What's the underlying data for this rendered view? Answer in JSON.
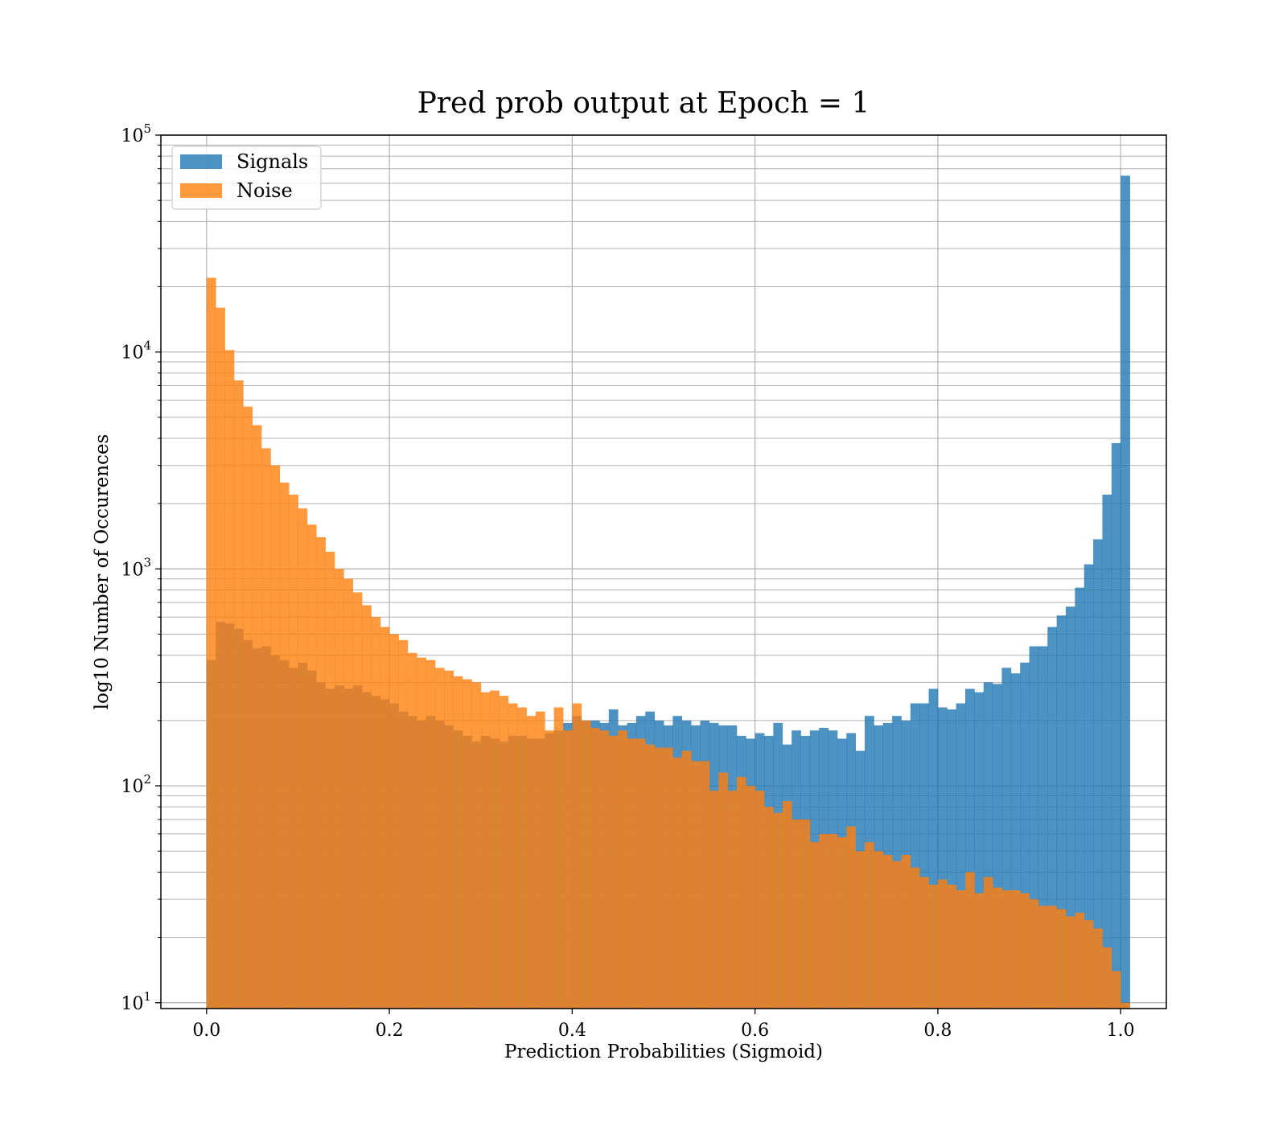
{
  "chart_data": {
    "type": "bar",
    "title": "Pred prob output at Epoch = 1",
    "xlabel": "Prediction Probabilities (Sigmoid)",
    "ylabel": "log10 Number of Occurences",
    "xlim": [
      -0.05,
      1.05
    ],
    "ylim": [
      9.4,
      100000
    ],
    "y_scale": "log",
    "grid": "on (major and minor)",
    "legend_position": "upper-left",
    "x_ticks": [
      "0.0",
      "0.2",
      "0.4",
      "0.6",
      "0.8",
      "1.0"
    ],
    "y_ticks": [
      {
        "base": "10",
        "exp": "1",
        "value": 10
      },
      {
        "base": "10",
        "exp": "2",
        "value": 100
      },
      {
        "base": "10",
        "exp": "3",
        "value": 1000
      },
      {
        "base": "10",
        "exp": "4",
        "value": 10000
      },
      {
        "base": "10",
        "exp": "5",
        "value": 100000
      }
    ],
    "bin_start": 0.0,
    "bin_width": 0.01,
    "series": [
      {
        "name": "Signals",
        "color": "#1f77b4",
        "alpha": 0.8,
        "values": [
          380,
          570,
          560,
          530,
          470,
          430,
          440,
          400,
          380,
          350,
          370,
          340,
          300,
          280,
          290,
          280,
          290,
          270,
          260,
          250,
          240,
          220,
          210,
          200,
          210,
          200,
          190,
          180,
          170,
          160,
          170,
          165,
          160,
          170,
          170,
          165,
          165,
          175,
          180,
          195,
          210,
          200,
          200,
          195,
          225,
          190,
          195,
          210,
          220,
          200,
          190,
          210,
          200,
          190,
          200,
          195,
          190,
          190,
          170,
          165,
          175,
          170,
          195,
          155,
          180,
          170,
          180,
          185,
          180,
          165,
          175,
          145,
          210,
          190,
          195,
          210,
          200,
          240,
          240,
          280,
          230,
          225,
          240,
          280,
          270,
          300,
          295,
          350,
          330,
          370,
          440,
          440,
          540,
          610,
          670,
          820,
          1050,
          1370,
          2200,
          3800,
          65000
        ]
      },
      {
        "name": "Noise",
        "color": "#ff7f0e",
        "alpha": 0.8,
        "values": [
          22000,
          16000,
          10200,
          7400,
          5600,
          4600,
          3600,
          3000,
          2500,
          2200,
          1900,
          1600,
          1400,
          1200,
          1000,
          900,
          780,
          680,
          600,
          540,
          500,
          470,
          410,
          390,
          380,
          350,
          340,
          320,
          310,
          300,
          270,
          275,
          260,
          240,
          230,
          210,
          220,
          180,
          230,
          180,
          240,
          200,
          185,
          180,
          170,
          180,
          165,
          165,
          155,
          150,
          150,
          135,
          145,
          130,
          130,
          95,
          115,
          95,
          110,
          100,
          95,
          80,
          75,
          85,
          70,
          70,
          55,
          60,
          60,
          58,
          65,
          50,
          55,
          50,
          48,
          45,
          48,
          42,
          38,
          35,
          37,
          35,
          33,
          40,
          32,
          38,
          34,
          33,
          33,
          32,
          30,
          28,
          28,
          27,
          25,
          26,
          24,
          22,
          18,
          14,
          10
        ]
      }
    ]
  }
}
